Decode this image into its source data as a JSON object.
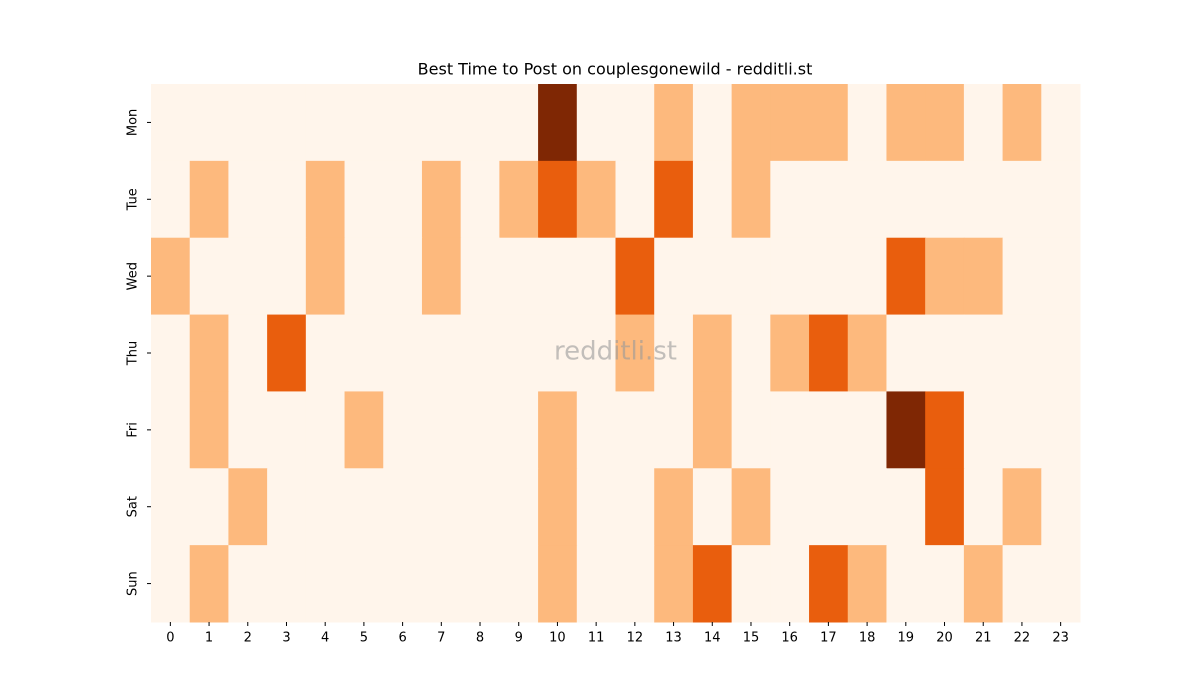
{
  "chart_data": {
    "type": "heatmap",
    "title": "Best Time to Post on couplesgonewild - redditli.st",
    "watermark": "redditli.st",
    "x": [
      0,
      1,
      2,
      3,
      4,
      5,
      6,
      7,
      8,
      9,
      10,
      11,
      12,
      13,
      14,
      15,
      16,
      17,
      18,
      19,
      20,
      21,
      22,
      23
    ],
    "y": [
      "Mon",
      "Tue",
      "Wed",
      "Thu",
      "Fri",
      "Sat",
      "Sun"
    ],
    "values": [
      [
        0,
        0,
        0,
        0,
        0,
        0,
        0,
        0,
        0,
        0,
        3,
        0,
        0,
        1,
        0,
        1,
        1,
        1,
        0,
        1,
        1,
        0,
        1,
        0
      ],
      [
        0,
        1,
        0,
        0,
        1,
        0,
        0,
        1,
        0,
        1,
        2,
        1,
        0,
        2,
        0,
        1,
        0,
        0,
        0,
        0,
        0,
        0,
        0,
        0
      ],
      [
        1,
        0,
        0,
        0,
        1,
        0,
        0,
        1,
        0,
        0,
        0,
        0,
        2,
        0,
        0,
        0,
        0,
        0,
        0,
        2,
        1,
        1,
        0,
        0
      ],
      [
        0,
        1,
        0,
        2,
        0,
        0,
        0,
        0,
        0,
        0,
        0,
        0,
        1,
        0,
        1,
        0,
        1,
        2,
        1,
        0,
        0,
        0,
        0,
        0
      ],
      [
        0,
        1,
        0,
        0,
        0,
        1,
        0,
        0,
        0,
        0,
        1,
        0,
        0,
        0,
        1,
        0,
        0,
        0,
        0,
        3,
        2,
        0,
        0,
        0
      ],
      [
        0,
        0,
        1,
        0,
        0,
        0,
        0,
        0,
        0,
        0,
        1,
        0,
        0,
        1,
        0,
        1,
        0,
        0,
        0,
        0,
        2,
        0,
        1,
        0
      ],
      [
        0,
        1,
        0,
        0,
        0,
        0,
        0,
        0,
        0,
        0,
        1,
        0,
        0,
        1,
        2,
        0,
        0,
        2,
        1,
        0,
        0,
        1,
        0,
        0
      ]
    ],
    "vmin": 0,
    "vmax": 3,
    "colormap": [
      "#fff5eb",
      "#fdb97d",
      "#e95e0d",
      "#7f2704"
    ]
  }
}
